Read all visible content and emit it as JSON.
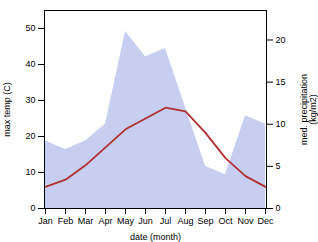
{
  "chart_data": {
    "type": "line",
    "categories": [
      "Jan",
      "Feb",
      "Mar",
      "Apr",
      "May",
      "Jun",
      "Jul",
      "Aug",
      "Sep",
      "Oct",
      "Nov",
      "Dec"
    ],
    "series": [
      {
        "type": "area",
        "axis": "y2",
        "color": "#c8cef0",
        "values": [
          8,
          7,
          8,
          10,
          21,
          18,
          19,
          12,
          5,
          4,
          11,
          10
        ]
      },
      {
        "type": "line",
        "color": "#b03030",
        "values": [
          6,
          8,
          12,
          17,
          22,
          25,
          28,
          27,
          21,
          14,
          9,
          6
        ]
      }
    ],
    "xlabel": "date (month)",
    "ylabel": "max temp (C)",
    "y2label": "med. precipitation\n(kg/m2)",
    "ylim": [
      0,
      55
    ],
    "yticks": [
      0,
      10,
      20,
      30,
      40,
      50
    ],
    "y2lim": [
      0,
      23.5
    ],
    "y2ticks": [
      0,
      5,
      10,
      15,
      20
    ]
  }
}
